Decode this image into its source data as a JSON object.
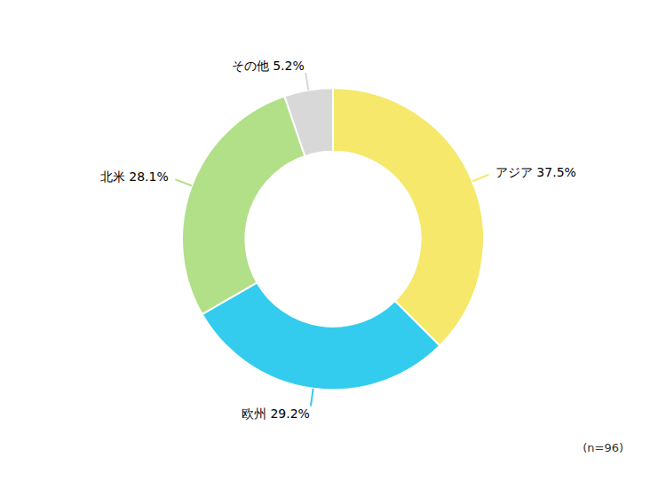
{
  "chart_data": {
    "type": "pie",
    "categories": [
      "アジア",
      "欧州",
      "北米",
      "その他"
    ],
    "values": [
      37.5,
      29.2,
      28.1,
      5.2
    ],
    "value_labels": [
      "アジア  37.5%",
      "欧州  29.2%",
      "北米  28.1%",
      "その他  5.2%"
    ],
    "colors": [
      "#F5E86A",
      "#33CCEE",
      "#B2E088",
      "#D8D8D8"
    ],
    "data_labels": true,
    "annotations": [
      "(n=96)"
    ]
  }
}
